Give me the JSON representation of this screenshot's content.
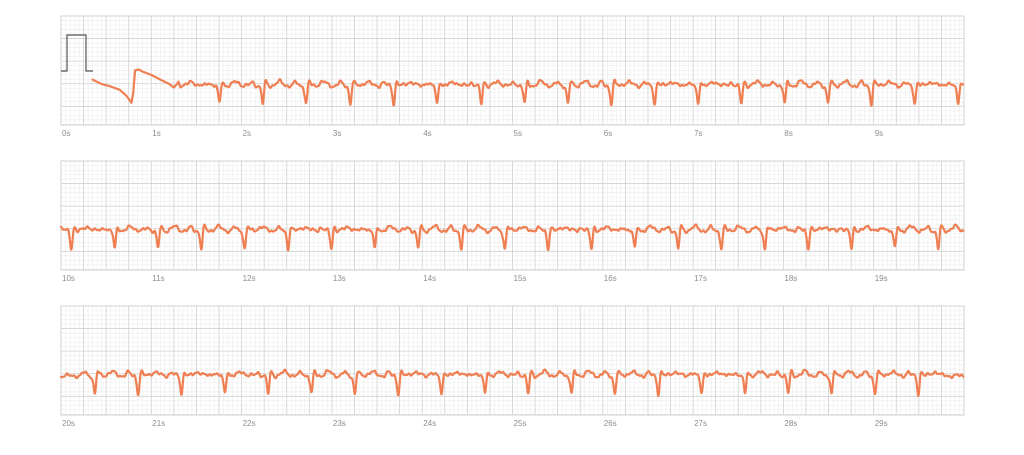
{
  "colors": {
    "background": "#ffffff",
    "grid_minor": "#ececec",
    "grid_major": "#d2d2d2",
    "trace": "#ef7f52",
    "calibration": "#555555"
  },
  "chart_data": {
    "type": "line",
    "title": "",
    "xlabel": "",
    "ylabel": "",
    "grid": true,
    "calibration_pulse": true,
    "strips": [
      {
        "xlim": [
          0,
          10
        ],
        "ticks": [
          "0s",
          "1s",
          "2s",
          "3s",
          "4s",
          "5s",
          "6s",
          "7s",
          "8s",
          "9s"
        ],
        "trace_start": 0.35,
        "segments": [
          {
            "x": [
              0.35,
              0.45,
              0.55,
              0.65,
              0.72,
              0.78,
              0.8,
              0.82
            ],
            "y": [
              0.18,
              0.05,
              -0.02,
              -0.12,
              -0.28,
              -0.5,
              -0.2,
              0.45
            ]
          },
          {
            "x": [
              0.82,
              0.86,
              0.9,
              1.0,
              1.1,
              1.2,
              1.25,
              1.3
            ],
            "y": [
              0.45,
              0.48,
              0.42,
              0.32,
              0.18,
              0.05,
              -0.05,
              0.1
            ]
          }
        ],
        "beats": [
          1.25,
          1.74,
          2.22,
          2.7,
          3.19,
          3.67,
          4.15,
          4.64,
          5.12,
          5.6,
          6.08,
          6.56,
          7.04,
          7.52,
          8.0,
          8.48,
          8.96,
          9.44,
          9.92
        ]
      },
      {
        "xlim": [
          10,
          20
        ],
        "ticks": [
          "10s",
          "11s",
          "12s",
          "13s",
          "14s",
          "15s",
          "16s",
          "17s",
          "18s",
          "19s"
        ],
        "trace_start": 10.0,
        "beats": [
          10.1,
          10.58,
          11.06,
          11.54,
          12.02,
          12.5,
          12.98,
          13.46,
          13.94,
          14.42,
          14.9,
          15.38,
          15.86,
          16.34,
          16.82,
          17.3,
          17.78,
          18.26,
          18.74,
          19.22,
          19.7
        ]
      },
      {
        "xlim": [
          20,
          30
        ],
        "ticks": [
          "20s",
          "21s",
          "22s",
          "23s",
          "24s",
          "25s",
          "26s",
          "27s",
          "28s",
          "29s"
        ],
        "trace_start": 20.0,
        "beats": [
          20.36,
          20.84,
          21.32,
          21.8,
          22.28,
          22.76,
          23.24,
          23.72,
          24.2,
          24.68,
          25.16,
          25.64,
          26.12,
          26.6,
          27.08,
          27.56,
          28.04,
          28.52,
          29.0,
          29.48
        ]
      }
    ]
  }
}
